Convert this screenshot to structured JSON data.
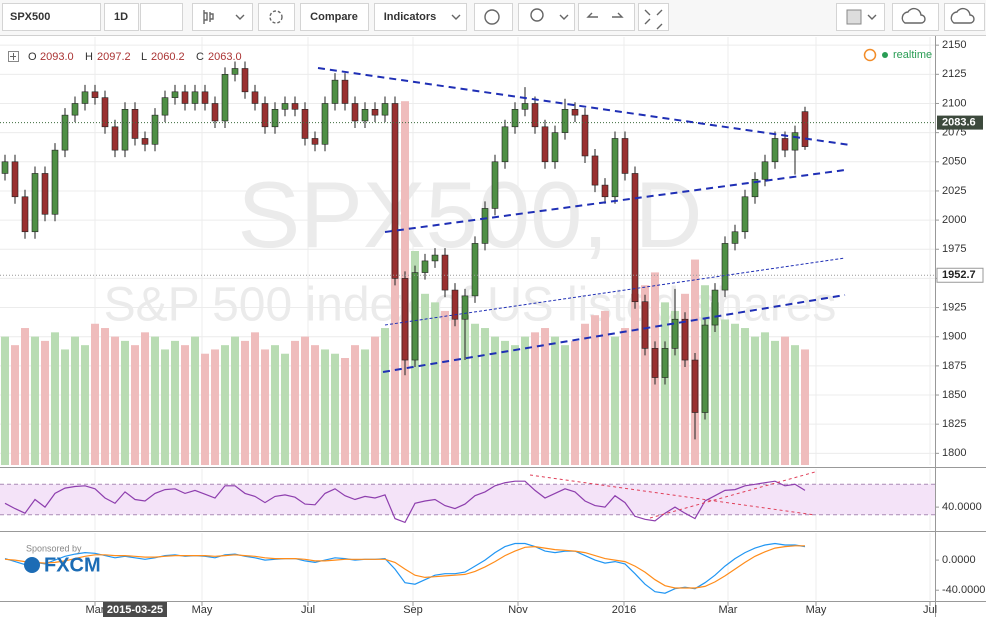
{
  "toolbar": {
    "symbol": "SPX500",
    "interval": "1D",
    "compare": "Compare",
    "indicators": "Indicators"
  },
  "chart_data": [
    {
      "type": "candlestick",
      "watermark": {
        "title": "SPX500, D",
        "subtitle": "S&P 500 index of US listed shares"
      },
      "legend": {
        "open_label": "O",
        "high_label": "H",
        "low_label": "L",
        "close_label": "C"
      },
      "last_value_labels": {
        "open": "2093.0",
        "high": "2097.2",
        "low": "2060.2",
        "close": "2063.0"
      },
      "status": "realtime",
      "sponsor": {
        "text": "Sponsored by",
        "brand": "FXCM"
      },
      "crosshair_label": {
        "value": 13,
        "label": "2015-03-25"
      },
      "open": [
        2040,
        2050,
        2020,
        1990,
        2040,
        2005,
        2060,
        2090,
        2100,
        2110,
        2105,
        2080,
        2060,
        2095,
        2070,
        2065,
        2090,
        2105,
        2110,
        2100,
        2110,
        2100,
        2085,
        2125,
        2130,
        2110,
        2100,
        2080,
        2095,
        2100,
        2095,
        2070,
        2065,
        2100,
        2120,
        2100,
        2085,
        2095,
        2090,
        2100,
        1950,
        1880,
        1955,
        1965,
        1970,
        1940,
        1915,
        1935,
        1980,
        2010,
        2050,
        2080,
        2095,
        2100,
        2080,
        2050,
        2075,
        2095,
        2090,
        2055,
        2030,
        2020,
        2070,
        2040,
        1930,
        1890,
        1865,
        1890,
        1915,
        1880,
        1835,
        1910,
        1940,
        1980,
        1990,
        2020,
        2035,
        2050,
        2070,
        2060,
        2093
      ],
      "high": [
        2056,
        2056,
        2026,
        2046,
        2046,
        2066,
        2096,
        2106,
        2116,
        2116,
        2111,
        2086,
        2101,
        2101,
        2076,
        2096,
        2111,
        2116,
        2116,
        2116,
        2116,
        2106,
        2131,
        2136,
        2136,
        2116,
        2106,
        2101,
        2106,
        2106,
        2101,
        2076,
        2106,
        2126,
        2126,
        2106,
        2101,
        2101,
        2106,
        2106,
        1956,
        1961,
        1971,
        1976,
        1976,
        1946,
        1941,
        1986,
        2016,
        2056,
        2086,
        2101,
        2114,
        2106,
        2086,
        2081,
        2104,
        2101,
        2096,
        2061,
        2036,
        2076,
        2076,
        2046,
        1936,
        1896,
        1896,
        1941,
        1921,
        1886,
        1916,
        1946,
        1986,
        1996,
        2026,
        2041,
        2056,
        2076,
        2076,
        2081,
        2097.2
      ],
      "low": [
        2034,
        2014,
        1984,
        1984,
        1999,
        1999,
        2054,
        2084,
        2094,
        2099,
        2074,
        2054,
        2054,
        2064,
        2059,
        2059,
        2084,
        2099,
        2094,
        2094,
        2094,
        2079,
        2079,
        2119,
        2104,
        2094,
        2074,
        2074,
        2089,
        2089,
        2064,
        2059,
        2059,
        2094,
        2094,
        2079,
        2079,
        2084,
        2084,
        1944,
        1867,
        1874,
        1949,
        1959,
        1934,
        1909,
        1880,
        1929,
        1974,
        2004,
        2044,
        2074,
        2089,
        2074,
        2044,
        2044,
        2069,
        2084,
        2049,
        2024,
        2014,
        2014,
        2034,
        1924,
        1884,
        1859,
        1859,
        1884,
        1874,
        1812,
        1829,
        1904,
        1934,
        1974,
        1984,
        2014,
        2029,
        2044,
        2054,
        2039,
        2060.2
      ],
      "close": [
        2050,
        2020,
        1990,
        2040,
        2005,
        2060,
        2090,
        2100,
        2110,
        2105,
        2080,
        2060,
        2095,
        2070,
        2065,
        2090,
        2105,
        2110,
        2100,
        2110,
        2100,
        2085,
        2125,
        2130,
        2110,
        2100,
        2080,
        2095,
        2100,
        2095,
        2070,
        2065,
        2100,
        2120,
        2100,
        2085,
        2095,
        2090,
        2100,
        1950,
        1880,
        1955,
        1965,
        1970,
        1940,
        1915,
        1935,
        1980,
        2010,
        2050,
        2080,
        2095,
        2100,
        2080,
        2050,
        2075,
        2095,
        2090,
        2055,
        2030,
        2020,
        2070,
        2040,
        1930,
        1890,
        1865,
        1890,
        1915,
        1880,
        1835,
        1910,
        1940,
        1980,
        1990,
        2020,
        2035,
        2050,
        2070,
        2060,
        2075,
        2063
      ],
      "volume": [
        30,
        28,
        32,
        30,
        29,
        31,
        27,
        30,
        28,
        33,
        32,
        30,
        29,
        28,
        31,
        30,
        27,
        29,
        28,
        30,
        26,
        27,
        28,
        30,
        29,
        31,
        27,
        28,
        26,
        29,
        30,
        28,
        27,
        26,
        25,
        28,
        27,
        30,
        32,
        55,
        85,
        50,
        40,
        38,
        36,
        34,
        35,
        33,
        32,
        30,
        29,
        28,
        30,
        31,
        32,
        30,
        28,
        29,
        33,
        35,
        36,
        30,
        32,
        40,
        42,
        45,
        38,
        36,
        40,
        48,
        42,
        38,
        34,
        33,
        32,
        30,
        31,
        29,
        30,
        28,
        27
      ],
      "vlim": [
        0,
        100
      ],
      "up_color": "#4f8f45",
      "down_color": "#993030",
      "volume_up_color": "#b9dcb3",
      "volume_down_color": "#efbcbc",
      "price_lines": [
        2083.6,
        1952.7
      ],
      "xlim": [
        -0.5,
        93
      ],
      "xticks": [
        {
          "value": 9,
          "label": "Mar"
        },
        {
          "value": 19.7,
          "label": "May"
        },
        {
          "value": 30.3,
          "label": "Jul"
        },
        {
          "value": 40.8,
          "label": "Sep"
        },
        {
          "value": 51.3,
          "label": "Nov"
        },
        {
          "value": 61.9,
          "label": "2016"
        },
        {
          "value": 72.3,
          "label": "Mar"
        },
        {
          "value": 81.1,
          "label": "May"
        },
        {
          "value": 92.5,
          "label": "Jul"
        }
      ],
      "ylim": [
        1790,
        2157
      ],
      "yticks": [
        1800,
        1825,
        1850,
        1875,
        1900,
        1925,
        1950,
        1975,
        2000,
        2025,
        2050,
        2075,
        2100,
        2125,
        2150
      ],
      "grid": true
    },
    {
      "type": "line",
      "values": [
        45,
        38,
        32,
        50,
        40,
        58,
        65,
        67,
        68,
        64,
        52,
        45,
        60,
        50,
        48,
        58,
        63,
        64,
        58,
        62,
        57,
        52,
        68,
        68,
        58,
        54,
        46,
        54,
        56,
        53,
        44,
        43,
        58,
        64,
        55,
        50,
        54,
        52,
        56,
        25,
        20,
        45,
        48,
        50,
        42,
        38,
        44,
        55,
        60,
        68,
        72,
        74,
        74,
        62,
        52,
        58,
        64,
        60,
        48,
        42,
        40,
        55,
        46,
        28,
        24,
        22,
        32,
        40,
        32,
        25,
        48,
        55,
        62,
        63,
        68,
        70,
        72,
        74,
        68,
        70,
        62
      ],
      "color": "#8e3fae",
      "bands": [
        30,
        70
      ],
      "band_fill": "#f4e3f8",
      "xlim": [
        -0.5,
        93
      ],
      "ylim": [
        10,
        90
      ],
      "yticks": [
        {
          "value": 40,
          "label": "40.0000"
        }
      ]
    },
    {
      "type": "line",
      "series": [
        {
          "color": "#2196f3",
          "values": [
            2,
            -2,
            -6,
            -3,
            -5,
            0,
            5,
            8,
            10,
            9,
            6,
            3,
            5,
            3,
            1,
            3,
            6,
            7,
            5,
            6,
            5,
            3,
            7,
            8,
            5,
            3,
            0,
            1,
            2,
            2,
            -1,
            -3,
            0,
            3,
            2,
            0,
            1,
            1,
            2,
            -12,
            -30,
            -32,
            -26,
            -20,
            -18,
            -18,
            -16,
            -8,
            0,
            10,
            18,
            22,
            22,
            18,
            12,
            10,
            12,
            12,
            6,
            0,
            -4,
            -2,
            -5,
            -18,
            -32,
            -42,
            -44,
            -38,
            -36,
            -38,
            -30,
            -20,
            -8,
            2,
            10,
            16,
            20,
            22,
            20,
            20,
            18
          ]
        },
        {
          "color": "#ff8c1a",
          "values": [
            1,
            0,
            -2,
            -3,
            -4,
            -3,
            -1,
            2,
            5,
            7,
            7,
            6,
            6,
            5,
            4,
            4,
            5,
            6,
            6,
            6,
            6,
            5,
            6,
            7,
            6,
            5,
            3,
            2,
            2,
            2,
            1,
            -1,
            -1,
            0,
            1,
            1,
            1,
            1,
            1,
            -3,
            -12,
            -20,
            -23,
            -22,
            -21,
            -20,
            -19,
            -15,
            -9,
            -2,
            6,
            12,
            17,
            18,
            16,
            14,
            13,
            12,
            10,
            6,
            2,
            0,
            -2,
            -8,
            -16,
            -26,
            -34,
            -37,
            -37,
            -37,
            -35,
            -29,
            -21,
            -12,
            -3,
            5,
            11,
            16,
            18,
            19,
            19
          ]
        }
      ],
      "xlim": [
        -0.5,
        93
      ],
      "ylim": [
        -53,
        36
      ],
      "yticks": [
        {
          "value": 0,
          "label": "0.0000"
        },
        {
          "value": -40,
          "label": "-40.0000"
        }
      ]
    }
  ]
}
